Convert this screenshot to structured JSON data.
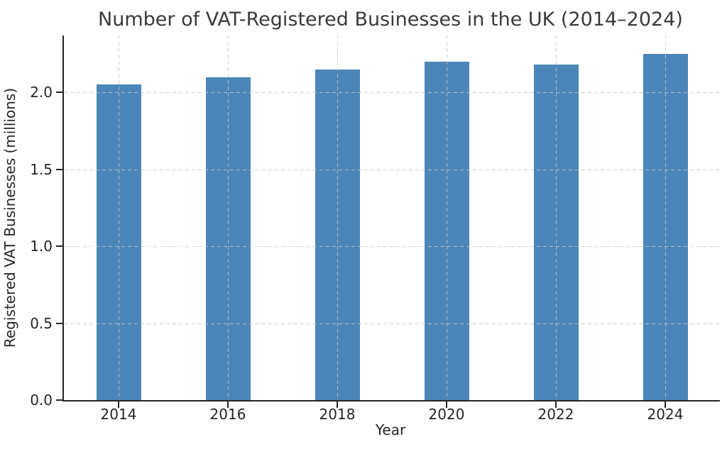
{
  "chart_data": {
    "type": "bar",
    "title": "Number of VAT-Registered Businesses in the UK (2014–2024)",
    "xlabel": "Year",
    "ylabel": "Registered VAT Businesses (millions)",
    "categories": [
      "2014",
      "2016",
      "2018",
      "2020",
      "2022",
      "2024"
    ],
    "values": [
      2.05,
      2.1,
      2.15,
      2.2,
      2.18,
      2.25
    ],
    "series": [
      {
        "name": "Registered VAT Businesses",
        "values": [
          2.05,
          2.1,
          2.15,
          2.2,
          2.18,
          2.25
        ]
      }
    ],
    "yticks": [
      0.0,
      0.5,
      1.0,
      1.5,
      2.0
    ],
    "ytick_labels": [
      "0.0",
      "0.5",
      "1.0",
      "1.5",
      "2.0"
    ],
    "ylim": [
      0,
      2.37
    ],
    "grid": "dashed, horizontal at y-ticks and vertical at category centers",
    "legend": "none",
    "bar_color": "#4C86B8",
    "grid_color": "#c6c6c6",
    "axis_color": "#262626",
    "background_color": "#ffffff",
    "bar_width_fraction": 0.41
  }
}
